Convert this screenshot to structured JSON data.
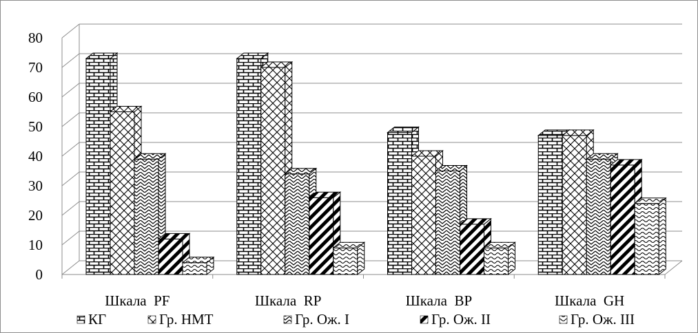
{
  "chart_data": {
    "type": "bar",
    "title": "",
    "xlabel": "",
    "ylabel": "",
    "ylim": [
      0,
      80
    ],
    "yticks": [
      "0",
      "10",
      "20",
      "30",
      "40",
      "50",
      "60",
      "70",
      "80"
    ],
    "grid": true,
    "legend_position": "bottom",
    "categories": [
      "Шкала  PF",
      "Шкала  RP",
      "Шкала  BP",
      "Шкала  GH"
    ],
    "series": [
      {
        "name": "КГ",
        "pattern": "brick-icon",
        "values": [
          73,
          73,
          48,
          47
        ]
      },
      {
        "name": "Гр. НМТ",
        "pattern": "diamond-icon",
        "values": [
          55,
          70,
          40,
          47
        ]
      },
      {
        "name": "Гр. Ож. I",
        "pattern": "zigzag-icon",
        "values": [
          39,
          34,
          35,
          39
        ]
      },
      {
        "name": "Гр. Ож. II",
        "pattern": "diagonal-stripes-icon",
        "values": [
          12,
          26,
          17,
          37
        ]
      },
      {
        "name": "Гр. Ож. III",
        "pattern": "wave-icon",
        "values": [
          4,
          9,
          9,
          24
        ]
      }
    ]
  }
}
